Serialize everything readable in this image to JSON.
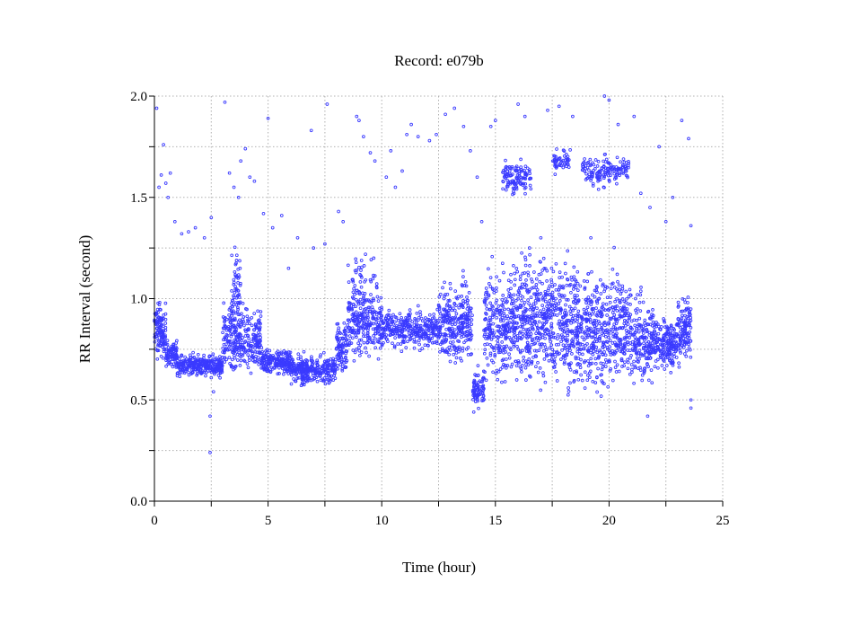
{
  "chart_data": {
    "type": "scatter",
    "title": "Record:  e079b",
    "xlabel": "Time (hour)",
    "ylabel": "RR Interval (second)",
    "xlim": [
      0,
      25
    ],
    "ylim": [
      0,
      2.0
    ],
    "xticks": [
      "0",
      "5",
      "10",
      "15",
      "20",
      "25"
    ],
    "xtick_values": [
      0,
      5,
      10,
      15,
      20,
      25
    ],
    "yticks": [
      "0.0",
      "0.5",
      "1.0",
      "1.5",
      "2.0"
    ],
    "ytick_values": [
      0,
      0.5,
      1.0,
      1.5,
      2.0
    ],
    "grid": true,
    "grid_step_x": 2.5,
    "grid_step_y": 0.25,
    "marker_color": "#3a3aff",
    "marker": "open-circle",
    "dense_bands": [
      {
        "t": [
          0.0,
          0.5
        ],
        "center": 0.84,
        "spread": 0.1,
        "n": 120
      },
      {
        "t": [
          0.5,
          1.0
        ],
        "center": 0.73,
        "spread": 0.05,
        "n": 90
      },
      {
        "t": [
          1.0,
          3.0
        ],
        "center": 0.67,
        "spread": 0.04,
        "n": 300
      },
      {
        "t": [
          3.0,
          4.7
        ],
        "center": 0.8,
        "spread": 0.12,
        "n": 300
      },
      {
        "t": [
          3.4,
          3.8
        ],
        "center": 1.05,
        "spread": 0.15,
        "n": 60
      },
      {
        "t": [
          4.7,
          6.0
        ],
        "center": 0.69,
        "spread": 0.05,
        "n": 200
      },
      {
        "t": [
          6.0,
          8.0
        ],
        "center": 0.65,
        "spread": 0.05,
        "n": 300
      },
      {
        "t": [
          8.0,
          8.5
        ],
        "center": 0.76,
        "spread": 0.1,
        "n": 90
      },
      {
        "t": [
          8.5,
          10.0
        ],
        "center": 0.88,
        "spread": 0.12,
        "n": 260
      },
      {
        "t": [
          8.5,
          9.8
        ],
        "center": 1.1,
        "spread": 0.1,
        "n": 40
      },
      {
        "t": [
          10.0,
          12.5
        ],
        "center": 0.85,
        "spread": 0.07,
        "n": 320
      },
      {
        "t": [
          12.5,
          14.0
        ],
        "center": 0.88,
        "spread": 0.15,
        "n": 280
      },
      {
        "t": [
          14.0,
          14.5
        ],
        "center": 0.55,
        "spread": 0.08,
        "n": 80
      },
      {
        "t": [
          14.5,
          15.5
        ],
        "center": 0.85,
        "spread": 0.2,
        "n": 200
      },
      {
        "t": [
          15.5,
          18.0
        ],
        "center": 0.9,
        "spread": 0.22,
        "n": 520
      },
      {
        "t": [
          15.3,
          16.6
        ],
        "center": 1.6,
        "spread": 0.07,
        "n": 120
      },
      {
        "t": [
          17.5,
          18.3
        ],
        "center": 1.68,
        "spread": 0.04,
        "n": 50
      },
      {
        "t": [
          18.0,
          21.0
        ],
        "center": 0.85,
        "spread": 0.22,
        "n": 600
      },
      {
        "t": [
          18.8,
          20.9
        ],
        "center": 1.63,
        "spread": 0.06,
        "n": 150
      },
      {
        "t": [
          21.0,
          22.0
        ],
        "center": 0.8,
        "spread": 0.15,
        "n": 180
      },
      {
        "t": [
          22.0,
          23.0
        ],
        "center": 0.78,
        "spread": 0.1,
        "n": 180
      },
      {
        "t": [
          23.0,
          23.6
        ],
        "center": 0.85,
        "spread": 0.12,
        "n": 120
      }
    ],
    "outliers": [
      [
        0.1,
        1.94
      ],
      [
        0.2,
        1.55
      ],
      [
        0.3,
        1.61
      ],
      [
        0.4,
        1.76
      ],
      [
        0.5,
        1.57
      ],
      [
        0.6,
        1.5
      ],
      [
        0.7,
        1.62
      ],
      [
        0.9,
        1.38
      ],
      [
        1.2,
        1.32
      ],
      [
        1.5,
        1.33
      ],
      [
        1.8,
        1.35
      ],
      [
        2.2,
        1.3
      ],
      [
        2.5,
        1.4
      ],
      [
        2.45,
        0.42
      ],
      [
        2.45,
        0.24
      ],
      [
        2.6,
        0.54
      ],
      [
        3.1,
        1.97
      ],
      [
        3.3,
        1.62
      ],
      [
        3.5,
        1.55
      ],
      [
        3.7,
        1.5
      ],
      [
        3.8,
        1.68
      ],
      [
        4.0,
        1.74
      ],
      [
        4.2,
        1.6
      ],
      [
        4.4,
        1.58
      ],
      [
        5.0,
        1.89
      ],
      [
        4.8,
        1.42
      ],
      [
        5.2,
        1.35
      ],
      [
        5.6,
        1.41
      ],
      [
        5.9,
        1.15
      ],
      [
        6.3,
        1.3
      ],
      [
        6.9,
        1.83
      ],
      [
        7.0,
        1.25
      ],
      [
        7.5,
        1.27
      ],
      [
        7.6,
        1.96
      ],
      [
        8.1,
        1.43
      ],
      [
        8.3,
        1.38
      ],
      [
        8.9,
        1.9
      ],
      [
        9.0,
        1.88
      ],
      [
        9.2,
        1.8
      ],
      [
        9.5,
        1.72
      ],
      [
        9.7,
        1.68
      ],
      [
        10.2,
        1.6
      ],
      [
        10.4,
        1.73
      ],
      [
        10.6,
        1.55
      ],
      [
        10.9,
        1.63
      ],
      [
        11.1,
        1.81
      ],
      [
        11.3,
        1.86
      ],
      [
        11.6,
        1.8
      ],
      [
        12.1,
        1.78
      ],
      [
        12.4,
        1.81
      ],
      [
        12.8,
        1.91
      ],
      [
        13.2,
        1.94
      ],
      [
        13.6,
        1.85
      ],
      [
        13.9,
        1.73
      ],
      [
        14.2,
        1.6
      ],
      [
        14.4,
        1.38
      ],
      [
        14.8,
        1.85
      ],
      [
        15.0,
        1.88
      ],
      [
        16.0,
        1.96
      ],
      [
        16.3,
        1.9
      ],
      [
        17.3,
        1.93
      ],
      [
        17.8,
        1.95
      ],
      [
        18.4,
        1.9
      ],
      [
        19.8,
        2.0
      ],
      [
        20.0,
        1.98
      ],
      [
        20.4,
        1.86
      ],
      [
        21.1,
        1.9
      ],
      [
        21.4,
        1.52
      ],
      [
        21.8,
        1.45
      ],
      [
        22.2,
        1.75
      ],
      [
        22.5,
        1.38
      ],
      [
        22.8,
        1.5
      ],
      [
        23.2,
        1.88
      ],
      [
        23.5,
        1.79
      ],
      [
        23.6,
        1.36
      ],
      [
        21.7,
        0.42
      ],
      [
        23.6,
        0.46
      ],
      [
        23.6,
        0.5
      ],
      [
        16.5,
        1.25
      ],
      [
        17.0,
        1.3
      ],
      [
        19.2,
        1.3
      ]
    ]
  }
}
